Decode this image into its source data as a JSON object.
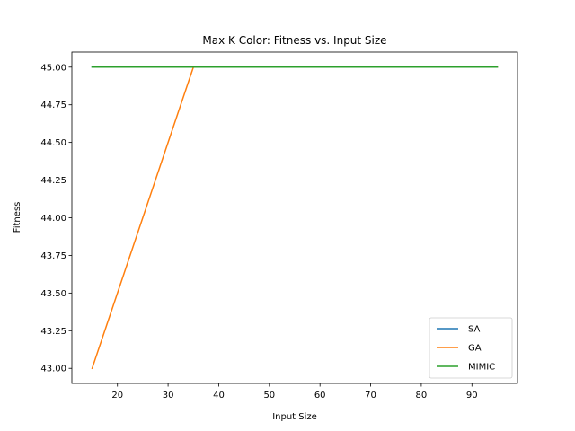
{
  "chart_data": {
    "type": "line",
    "title": "Max K Color: Fitness vs. Input Size",
    "xlabel": "Input Size",
    "ylabel": "Fitness",
    "xlim": [
      11,
      99
    ],
    "ylim": [
      42.9,
      45.1
    ],
    "x_ticks": [
      20,
      30,
      40,
      50,
      60,
      70,
      80,
      90
    ],
    "y_ticks": [
      43.0,
      43.25,
      43.5,
      43.75,
      44.0,
      44.25,
      44.5,
      44.75,
      45.0
    ],
    "y_tick_labels": [
      "43.00",
      "43.25",
      "43.50",
      "43.75",
      "44.00",
      "44.25",
      "44.50",
      "44.75",
      "45.00"
    ],
    "x": [
      15,
      35,
      55,
      75,
      95
    ],
    "series": [
      {
        "name": "SA",
        "color": "#1f77b4",
        "values": [
          45.0,
          45.0,
          45.0,
          45.0,
          45.0
        ]
      },
      {
        "name": "GA",
        "color": "#ff7f0e",
        "values": [
          43.0,
          45.0,
          45.0,
          45.0,
          45.0
        ]
      },
      {
        "name": "MIMIC",
        "color": "#2ca02c",
        "values": [
          45.0,
          45.0,
          45.0,
          45.0,
          45.0
        ]
      }
    ],
    "grid": false,
    "legend_position": "bottom-right"
  }
}
